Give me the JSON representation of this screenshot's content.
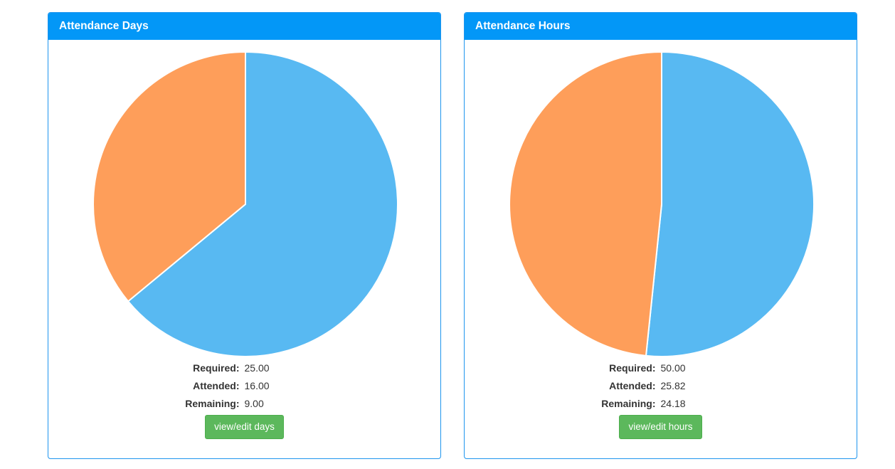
{
  "panels": [
    {
      "title": "Attendance Days",
      "stats": [
        {
          "label": "Required:",
          "value": "25.00"
        },
        {
          "label": "Attended:",
          "value": "16.00"
        },
        {
          "label": "Remaining:",
          "value": "9.00"
        }
      ],
      "button_label": "view/edit days"
    },
    {
      "title": "Attendance Hours",
      "stats": [
        {
          "label": "Required:",
          "value": "50.00"
        },
        {
          "label": "Attended:",
          "value": "25.82"
        },
        {
          "label": "Remaining:",
          "value": "24.18"
        }
      ],
      "button_label": "view/edit hours"
    }
  ],
  "colors": {
    "panel_header": "#0397f7",
    "panel_border": "#1e95ee",
    "attended_slice": "#58b9f2",
    "remaining_slice": "#fe9e5a",
    "button": "#5cb85c"
  },
  "chart_data": [
    {
      "type": "pie",
      "categories": [
        "Attended",
        "Remaining"
      ],
      "values": [
        16.0,
        9.0
      ],
      "colors": [
        "#58b9f2",
        "#fe9e5a"
      ]
    },
    {
      "type": "pie",
      "categories": [
        "Attended",
        "Remaining"
      ],
      "values": [
        25.82,
        24.18
      ],
      "colors": [
        "#58b9f2",
        "#fe9e5a"
      ]
    }
  ]
}
